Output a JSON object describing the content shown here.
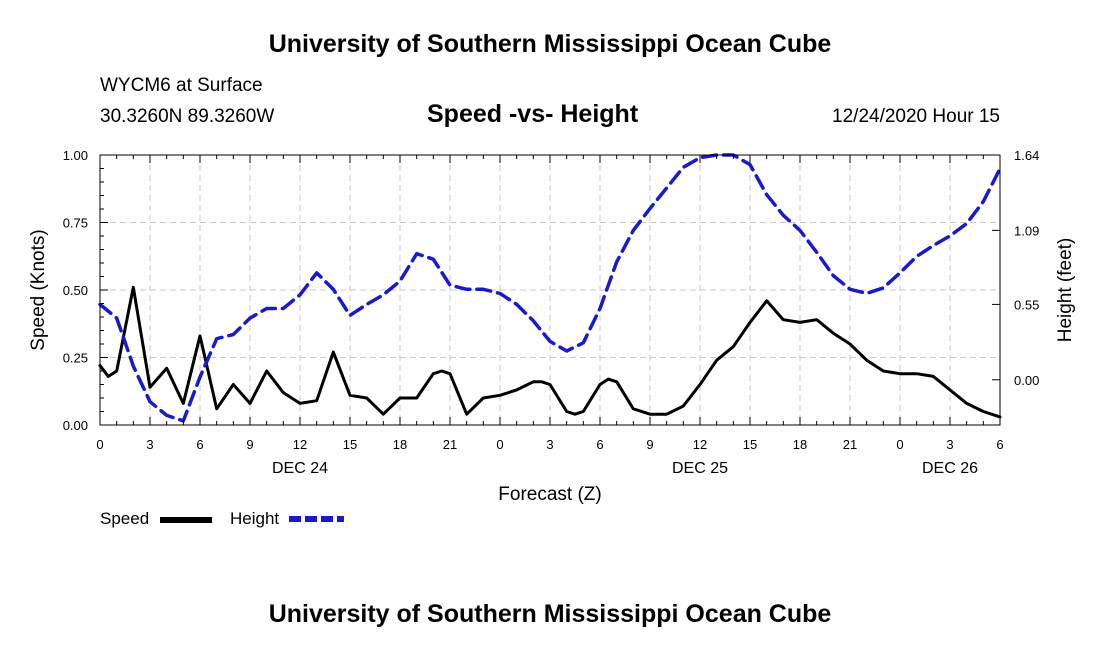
{
  "header": {
    "title": "University of Southern Mississippi Ocean Cube",
    "station": "WYCM6 at Surface",
    "coords": "30.3260N 89.3260W",
    "subtitle": "Speed -vs- Height",
    "timestamp": "12/24/2020 Hour 15"
  },
  "footer": {
    "title": "University of Southern Mississippi Ocean Cube"
  },
  "legend": {
    "speed_label": "Speed",
    "height_label": "Height"
  },
  "colors": {
    "speed": "#000000",
    "height": "#1a1acc",
    "grid": "#c8c8c8"
  },
  "chart_data": {
    "type": "line",
    "title": "Speed -vs- Height",
    "xlabel": "Forecast (Z)",
    "ylabel": "Speed (Knots)",
    "y2label": "Height (feet)",
    "xlim": [
      0,
      54
    ],
    "ylim": [
      0,
      1.0
    ],
    "y2lim": [
      -0.33,
      1.64
    ],
    "grid": true,
    "legend": "bottom-left",
    "x_ticks": [
      0,
      3,
      6,
      9,
      12,
      15,
      18,
      21,
      24,
      27,
      30,
      33,
      36,
      39,
      42,
      45,
      48,
      51,
      54
    ],
    "x_tick_labels": [
      "0",
      "3",
      "6",
      "9",
      "12",
      "15",
      "18",
      "21",
      "0",
      "3",
      "6",
      "9",
      "12",
      "15",
      "18",
      "21",
      "0",
      "3",
      "6"
    ],
    "y_ticks": [
      0,
      0.25,
      0.5,
      0.75,
      1.0
    ],
    "y_tick_labels": [
      "0.00",
      "0.25",
      "0.50",
      "0.75",
      "1.00"
    ],
    "y2_ticks": [
      0.0,
      0.55,
      1.09,
      1.64
    ],
    "y2_tick_labels": [
      "0.00",
      "0.55",
      "1.09",
      "1.64"
    ],
    "date_labels": [
      {
        "x": 12,
        "label": "DEC 24"
      },
      {
        "x": 36,
        "label": "DEC 25"
      },
      {
        "x": 51,
        "label": "DEC 26"
      }
    ],
    "series": [
      {
        "name": "Speed",
        "axis": "left",
        "style": "solid",
        "x": [
          0,
          0.5,
          1,
          2,
          3,
          4,
          5,
          6,
          7,
          8,
          9,
          10,
          11,
          12,
          13,
          14,
          15,
          16,
          17,
          18,
          19,
          20,
          20.5,
          21,
          22,
          23,
          24,
          25,
          26,
          26.5,
          27,
          28,
          28.5,
          29,
          30,
          30.5,
          31,
          32,
          33,
          34,
          35,
          36,
          37,
          38,
          39,
          40,
          41,
          42,
          43,
          44,
          45,
          46,
          47,
          48,
          49,
          50,
          51,
          52,
          53,
          54
        ],
        "values": [
          0.22,
          0.18,
          0.2,
          0.51,
          0.14,
          0.21,
          0.08,
          0.33,
          0.06,
          0.15,
          0.08,
          0.2,
          0.12,
          0.08,
          0.09,
          0.27,
          0.11,
          0.1,
          0.04,
          0.1,
          0.1,
          0.19,
          0.2,
          0.19,
          0.04,
          0.1,
          0.11,
          0.13,
          0.16,
          0.16,
          0.15,
          0.05,
          0.04,
          0.05,
          0.15,
          0.17,
          0.16,
          0.06,
          0.04,
          0.04,
          0.07,
          0.15,
          0.24,
          0.29,
          0.38,
          0.46,
          0.39,
          0.38,
          0.39,
          0.34,
          0.3,
          0.24,
          0.2,
          0.19,
          0.19,
          0.18,
          0.13,
          0.08,
          0.05,
          0.03
        ]
      },
      {
        "name": "Height",
        "axis": "right",
        "style": "dashed",
        "x": [
          0,
          1,
          2,
          3,
          4,
          5,
          6,
          7,
          8,
          9,
          10,
          11,
          12,
          13,
          14,
          15,
          16,
          17,
          18,
          19,
          20,
          21,
          22,
          23,
          24,
          25,
          26,
          27,
          28,
          29,
          30,
          31,
          32,
          33,
          34,
          35,
          36,
          37,
          38,
          39,
          40,
          41,
          42,
          43,
          44,
          45,
          46,
          47,
          48,
          49,
          50,
          51,
          52,
          53,
          54
        ],
        "values": [
          0.55,
          0.45,
          0.1,
          -0.16,
          -0.26,
          -0.3,
          0.02,
          0.3,
          0.33,
          0.45,
          0.52,
          0.52,
          0.62,
          0.78,
          0.66,
          0.47,
          0.55,
          0.62,
          0.72,
          0.92,
          0.88,
          0.69,
          0.66,
          0.66,
          0.63,
          0.55,
          0.43,
          0.28,
          0.21,
          0.27,
          0.52,
          0.86,
          1.09,
          1.25,
          1.4,
          1.55,
          1.62,
          1.64,
          1.64,
          1.57,
          1.35,
          1.2,
          1.09,
          0.93,
          0.76,
          0.66,
          0.63,
          0.67,
          0.78,
          0.9,
          0.98,
          1.05,
          1.14,
          1.3,
          1.54
        ]
      }
    ]
  }
}
